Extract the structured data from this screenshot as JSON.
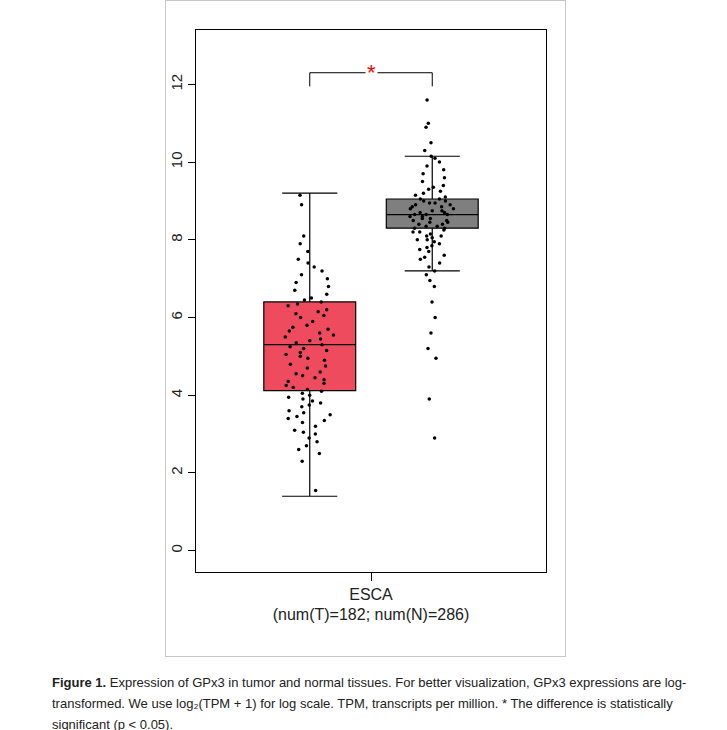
{
  "chart_data": {
    "type": "box",
    "categories": [
      "ESCA"
    ],
    "x_label": "(num(T)=182; num(N)=286)",
    "ylim": [
      -0.55,
      13.4
    ],
    "yticks": [
      0,
      2,
      4,
      6,
      8,
      10,
      12
    ],
    "groups": [
      {
        "color": "#ef4b5e",
        "q1": 4.12,
        "median": 5.3,
        "q3": 6.4,
        "lower_whisker": 1.4,
        "upper_whisker": 9.2,
        "values": [
          1.55,
          2.3,
          2.5,
          2.6,
          2.7,
          2.8,
          2.9,
          3.0,
          3.05,
          3.1,
          3.2,
          3.3,
          3.35,
          3.4,
          3.45,
          3.5,
          3.55,
          3.6,
          3.7,
          3.75,
          3.8,
          3.85,
          3.9,
          3.95,
          4.0,
          4.05,
          4.1,
          4.15,
          4.2,
          4.25,
          4.3,
          4.35,
          4.4,
          4.45,
          4.5,
          4.55,
          4.6,
          4.7,
          4.75,
          4.8,
          4.9,
          4.95,
          5.0,
          5.05,
          5.1,
          5.15,
          5.2,
          5.25,
          5.3,
          5.35,
          5.4,
          5.45,
          5.5,
          5.55,
          5.6,
          5.65,
          5.7,
          5.75,
          5.8,
          5.9,
          6.0,
          6.05,
          6.1,
          6.15,
          6.2,
          6.3,
          6.35,
          6.4,
          6.45,
          6.5,
          6.6,
          6.7,
          6.8,
          6.9,
          7.0,
          7.1,
          7.2,
          7.3,
          7.4,
          7.5,
          7.7,
          7.9,
          8.1,
          8.9,
          9.15
        ]
      },
      {
        "color": "#7f7f7f",
        "q1": 8.3,
        "median": 8.65,
        "q3": 9.05,
        "lower_whisker": 7.2,
        "upper_whisker": 10.15,
        "values": [
          2.9,
          3.9,
          4.95,
          5.2,
          5.6,
          6.0,
          6.4,
          6.8,
          6.95,
          7.1,
          7.2,
          7.3,
          7.4,
          7.5,
          7.55,
          7.6,
          7.7,
          7.75,
          7.8,
          7.85,
          7.9,
          7.95,
          8.0,
          8.0,
          8.05,
          8.1,
          8.1,
          8.15,
          8.2,
          8.2,
          8.25,
          8.3,
          8.3,
          8.35,
          8.35,
          8.4,
          8.4,
          8.45,
          8.45,
          8.5,
          8.5,
          8.55,
          8.55,
          8.6,
          8.6,
          8.65,
          8.65,
          8.65,
          8.7,
          8.7,
          8.75,
          8.75,
          8.8,
          8.8,
          8.85,
          8.85,
          8.9,
          8.9,
          8.95,
          8.95,
          9.0,
          9.0,
          9.05,
          9.05,
          9.1,
          9.15,
          9.2,
          9.25,
          9.3,
          9.35,
          9.4,
          9.5,
          9.6,
          9.7,
          9.8,
          9.9,
          10.0,
          10.1,
          10.15,
          10.3,
          10.5,
          10.9,
          11.0,
          11.6
        ]
      }
    ],
    "annotations": [
      {
        "text": "*",
        "color": "#ff0000",
        "y": 12.3,
        "y_end": 11.95
      }
    ],
    "caption": {
      "label": "Figure 1.",
      "text": "Expression of GPx3 in tumor and normal tissues. For better visualization, GPx3 expressions are log-transformed. We use log₂(TPM + 1) for log scale. TPM, transcripts per million. * The difference is statistically significant (p < 0.05)."
    },
    "grid": false,
    "legend": false
  }
}
